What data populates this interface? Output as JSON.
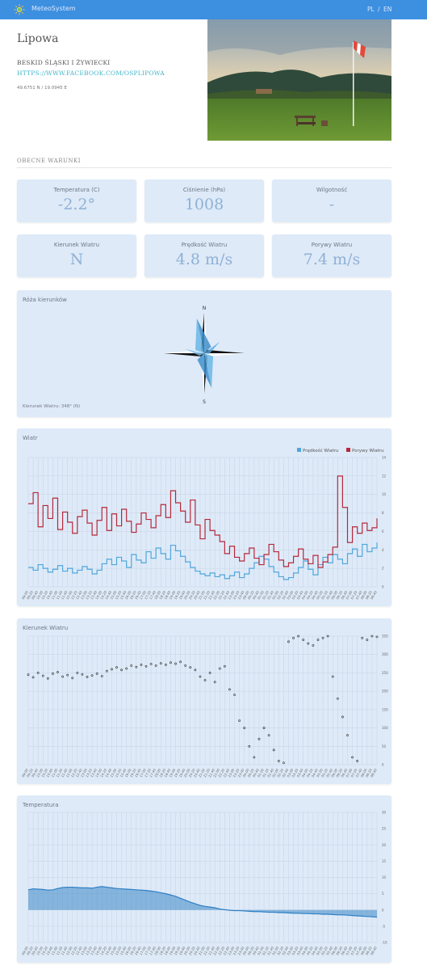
{
  "header": {
    "brand": "MeteoSystem",
    "lang_pl": "PL",
    "lang_sep": "/",
    "lang_en": "EN",
    "bar_color": "#3d8fe0"
  },
  "station": {
    "name": "Lipowa",
    "region": "BESKID ŚLĄSKI I ŻYWIECKI",
    "link": "HTTPS://WWW.FACEBOOK.COM/OSPLIPOWA",
    "coords": "49.6751 N / 19.0945 E"
  },
  "conditions": {
    "title": "OBECNE WARUNKI",
    "temperature": {
      "label": "Temperatura (C)",
      "value": "-2.2°"
    },
    "pressure": {
      "label": "Ciśnienie (hPa)",
      "value": "1008"
    },
    "humidity": {
      "label": "Wilgotność",
      "value": "-"
    },
    "wind_dir": {
      "label": "Kierunek Wiatru",
      "value": "N"
    },
    "wind_speed": {
      "label": "Prędkość Wiatru",
      "value": "4.8 m/s"
    },
    "gusts": {
      "label": "Porywy Wiatru",
      "value": "7.4 m/s"
    }
  },
  "rose": {
    "title": "Róża kierunków",
    "caption": "Kierunek Wiatru: 348° (N)",
    "labels": {
      "n": "N",
      "s": "S"
    },
    "direction_deg": 348
  },
  "wind_chart": {
    "title": "Wiatr",
    "legend_speed": "Prędkość Wiatru",
    "legend_gust": "Porywy Wiatru",
    "color_speed": "#4fa6dc",
    "color_gust": "#b5283a"
  },
  "dir_chart": {
    "title": "Kierunek Wiatru"
  },
  "temp_chart": {
    "title": "Temperatura",
    "color": "#4a90cc"
  },
  "chart_data": [
    {
      "type": "line",
      "title": "Wiatr",
      "ylim": [
        0,
        14
      ],
      "yticks": [
        0,
        2,
        4,
        6,
        8,
        10,
        12,
        14
      ],
      "xticks": [
        "09:00",
        "09:20",
        "09:40",
        "10:00",
        "10:20",
        "10:40",
        "11:00",
        "11:20",
        "11:40",
        "12:00",
        "12:20",
        "12:40",
        "13:00",
        "13:20",
        "13:40",
        "14:00",
        "14:20",
        "14:40",
        "15:00",
        "15:20",
        "15:40",
        "16:00",
        "16:20",
        "16:40",
        "17:00",
        "17:20",
        "17:40",
        "18:00",
        "18:20",
        "18:40",
        "19:00",
        "19:20",
        "19:40",
        "20:00",
        "20:20",
        "20:40",
        "21:00",
        "21:20",
        "21:40",
        "22:00",
        "22:20",
        "22:40",
        "23:00",
        "23:20",
        "23:40",
        "00:00",
        "00:20",
        "00:40",
        "01:00",
        "01:20",
        "01:40",
        "02:00",
        "02:20",
        "02:40",
        "03:00",
        "03:20",
        "03:40",
        "04:00",
        "04:20",
        "04:40",
        "05:00",
        "05:20",
        "05:40",
        "06:00",
        "06:20",
        "06:40",
        "07:00",
        "07:20",
        "07:40",
        "08:00",
        "08:20",
        "08:40"
      ],
      "series": [
        {
          "name": "Prędkość Wiatru",
          "values": [
            2.1,
            1.8,
            2.4,
            2.0,
            1.6,
            1.9,
            2.3,
            1.7,
            2.0,
            1.5,
            1.8,
            2.2,
            1.9,
            1.4,
            1.8,
            2.5,
            3.0,
            2.4,
            3.2,
            2.8,
            2.1,
            3.5,
            2.9,
            2.6,
            3.8,
            3.1,
            4.2,
            3.6,
            3.0,
            4.5,
            3.9,
            3.3,
            2.7,
            2.1,
            1.7,
            1.4,
            1.2,
            1.5,
            1.1,
            1.3,
            0.9,
            1.2,
            1.6,
            1.0,
            1.4,
            2.0,
            2.6,
            3.3,
            3.0,
            2.2,
            1.6,
            1.1,
            0.8,
            1.0,
            1.5,
            2.1,
            2.8,
            1.9,
            1.3,
            2.4,
            3.2,
            2.6,
            3.5,
            3.0,
            2.5,
            3.6,
            4.1,
            3.3,
            4.6,
            3.8,
            4.2,
            4.8
          ]
        },
        {
          "name": "Porywy Wiatru",
          "values": [
            9.0,
            10.2,
            6.5,
            8.8,
            7.4,
            9.6,
            6.2,
            8.1,
            7.0,
            5.8,
            7.6,
            8.3,
            6.9,
            5.6,
            7.2,
            8.6,
            6.1,
            7.9,
            6.6,
            8.4,
            7.1,
            5.9,
            6.8,
            8.0,
            7.3,
            6.4,
            7.7,
            8.9,
            7.5,
            10.4,
            9.1,
            8.2,
            7.0,
            9.4,
            6.7,
            5.2,
            7.3,
            6.1,
            5.6,
            4.9,
            3.6,
            4.4,
            3.2,
            2.8,
            3.6,
            4.2,
            3.1,
            2.4,
            3.5,
            4.6,
            3.8,
            2.9,
            2.2,
            2.6,
            3.3,
            4.1,
            3.0,
            2.5,
            3.4,
            2.1,
            2.7,
            3.5,
            4.3,
            12.0,
            8.6,
            4.8,
            6.5,
            5.8,
            6.9,
            6.1,
            6.4,
            7.4
          ]
        }
      ]
    },
    {
      "type": "scatter",
      "title": "Kierunek Wiatru",
      "ylim": [
        0,
        350
      ],
      "yticks": [
        0,
        50,
        100,
        150,
        200,
        250,
        300,
        350
      ],
      "xticks": [
        "09:00",
        "09:20",
        "09:40",
        "10:00",
        "10:20",
        "10:40",
        "11:00",
        "11:20",
        "11:40",
        "12:00",
        "12:20",
        "12:40",
        "13:00",
        "13:20",
        "13:40",
        "14:00",
        "14:20",
        "14:40",
        "15:00",
        "15:20",
        "15:40",
        "16:00",
        "16:20",
        "16:40",
        "17:00",
        "17:20",
        "17:40",
        "18:00",
        "18:20",
        "18:40",
        "19:00",
        "19:20",
        "19:40",
        "20:00",
        "20:20",
        "20:40",
        "21:00",
        "21:20",
        "21:40",
        "22:00",
        "22:20",
        "22:40",
        "23:00",
        "23:20",
        "23:40",
        "00:00",
        "00:20",
        "00:40",
        "01:00",
        "01:20",
        "01:40",
        "02:00",
        "02:20",
        "02:40",
        "03:00",
        "03:20",
        "03:40",
        "04:00",
        "04:20",
        "04:40",
        "05:00",
        "05:20",
        "05:40",
        "06:00",
        "06:20",
        "06:40",
        "07:00",
        "07:20",
        "07:40",
        "08:00",
        "08:20",
        "08:40"
      ],
      "values": [
        245,
        238,
        250,
        242,
        235,
        248,
        252,
        240,
        244,
        236,
        250,
        246,
        239,
        243,
        248,
        241,
        255,
        260,
        265,
        258,
        262,
        270,
        266,
        272,
        268,
        274,
        270,
        276,
        272,
        278,
        275,
        280,
        270,
        265,
        258,
        240,
        230,
        250,
        225,
        262,
        268,
        205,
        190,
        120,
        100,
        50,
        20,
        70,
        100,
        80,
        40,
        10,
        5,
        335,
        345,
        350,
        340,
        330,
        325,
        340,
        345,
        350,
        240,
        180,
        130,
        80,
        20,
        10,
        345,
        340,
        350,
        348
      ]
    },
    {
      "type": "area",
      "title": "Temperatura",
      "ylim": [
        -10,
        30
      ],
      "yticks": [
        -10,
        -5,
        0,
        5,
        10,
        15,
        20,
        25,
        30
      ],
      "xticks": [
        "09:00",
        "09:20",
        "09:40",
        "10:00",
        "10:20",
        "10:40",
        "11:00",
        "11:20",
        "11:40",
        "12:00",
        "12:20",
        "12:40",
        "13:00",
        "13:20",
        "13:40",
        "14:00",
        "14:20",
        "14:40",
        "15:00",
        "15:20",
        "15:40",
        "16:00",
        "16:20",
        "16:40",
        "17:00",
        "17:20",
        "17:40",
        "18:00",
        "18:20",
        "18:40",
        "19:00",
        "19:20",
        "19:40",
        "20:00",
        "20:20",
        "20:40",
        "21:00",
        "21:20",
        "21:40",
        "22:00",
        "22:20",
        "22:40",
        "23:00",
        "23:20",
        "23:40",
        "00:00",
        "00:20",
        "00:40",
        "01:00",
        "01:20",
        "01:40",
        "02:00",
        "02:20",
        "02:40",
        "03:00",
        "03:20",
        "03:40",
        "04:00",
        "04:20",
        "04:40",
        "05:00",
        "05:20",
        "05:40",
        "06:00",
        "06:20",
        "06:40",
        "07:00",
        "07:20",
        "07:40",
        "08:00",
        "08:20",
        "08:40"
      ],
      "values": [
        6.2,
        6.5,
        6.4,
        6.3,
        6.1,
        6.2,
        6.6,
        6.9,
        7.0,
        7.0,
        6.9,
        6.8,
        6.8,
        6.7,
        7.0,
        7.2,
        7.0,
        6.8,
        6.6,
        6.5,
        6.4,
        6.3,
        6.2,
        6.1,
        6.0,
        5.8,
        5.6,
        5.3,
        5.0,
        4.6,
        4.2,
        3.6,
        3.0,
        2.4,
        1.9,
        1.4,
        1.1,
        0.9,
        0.7,
        0.3,
        0.1,
        -0.1,
        -0.2,
        -0.2,
        -0.3,
        -0.4,
        -0.5,
        -0.5,
        -0.6,
        -0.7,
        -0.7,
        -0.8,
        -0.8,
        -0.9,
        -1.0,
        -1.0,
        -1.1,
        -1.1,
        -1.2,
        -1.2,
        -1.3,
        -1.3,
        -1.4,
        -1.5,
        -1.5,
        -1.6,
        -1.7,
        -1.8,
        -1.9,
        -2.0,
        -2.1,
        -2.2
      ]
    }
  ]
}
